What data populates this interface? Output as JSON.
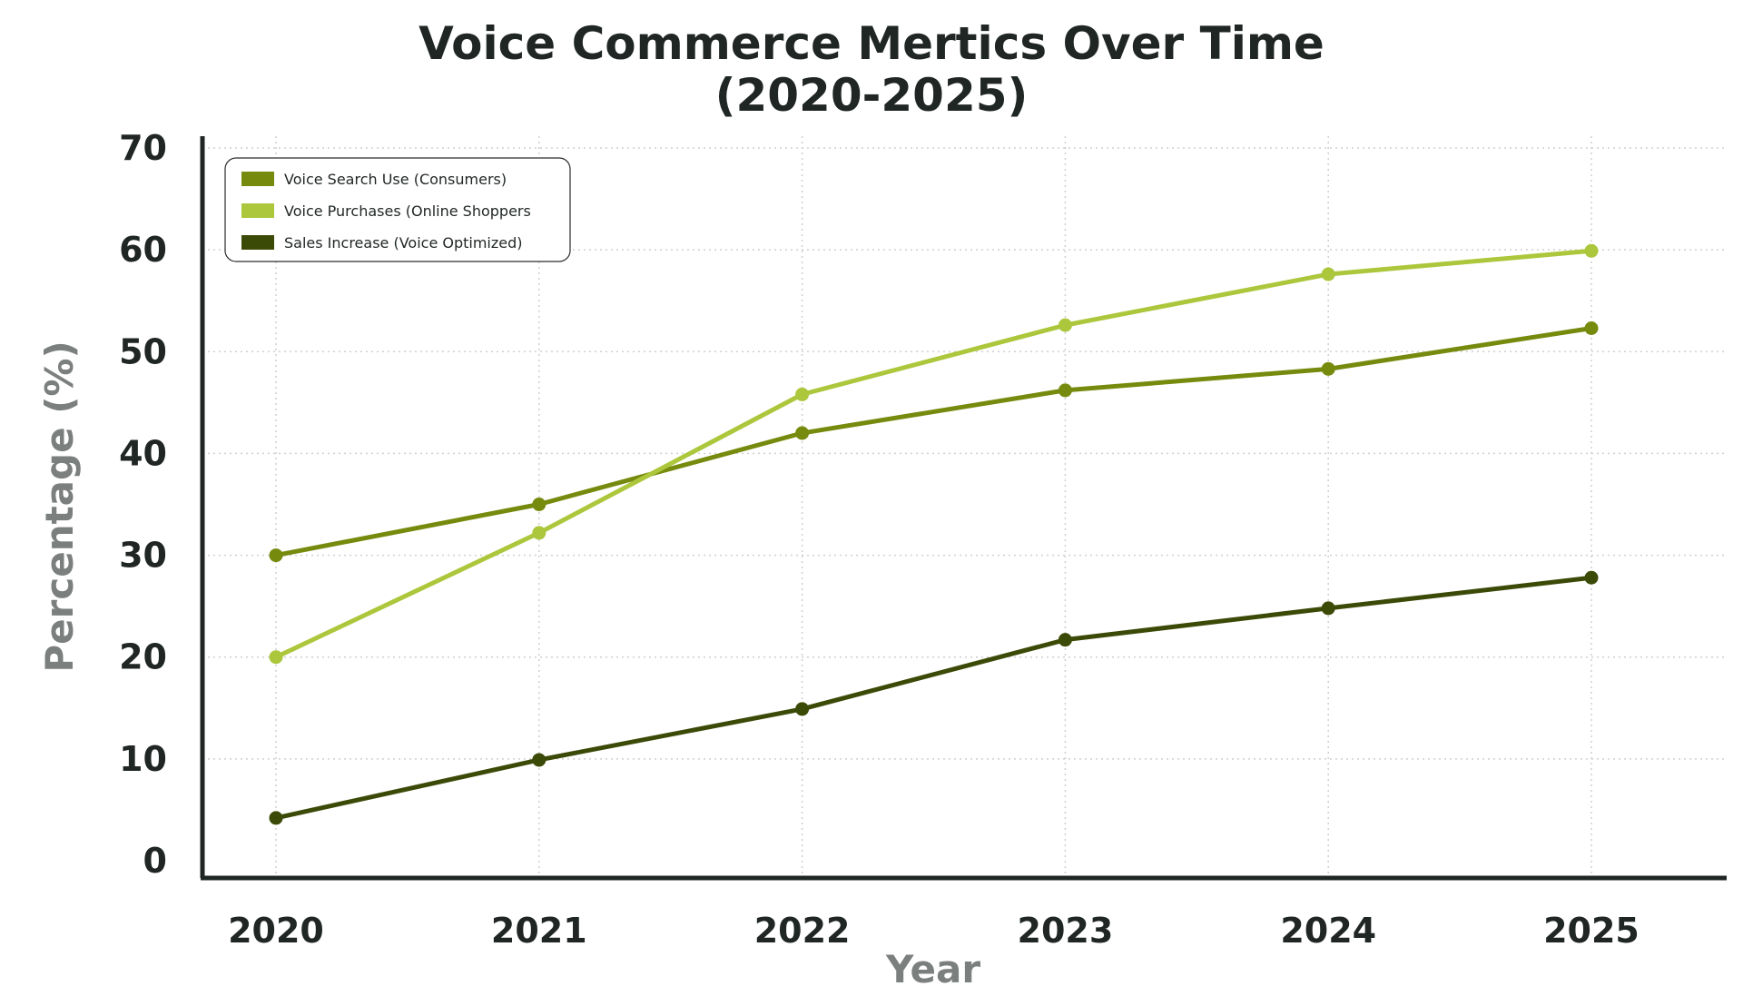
{
  "chart_data": {
    "type": "line",
    "title_lines": [
      "Voice Commerce Mertics Over Time",
      "(2020-2025)"
    ],
    "xlabel": "Year",
    "ylabel": "Percentage (%)",
    "categories": [
      "2020",
      "2021",
      "2022",
      "2023",
      "2024",
      "2025"
    ],
    "y_ticks": [
      "0",
      "10",
      "20",
      "30",
      "40",
      "50",
      "60",
      "70"
    ],
    "ylim": [
      0,
      70
    ],
    "grid": true,
    "legend_position": "top-left",
    "series": [
      {
        "name": "Voice Search Use (Consumers)",
        "color": "#768a0e",
        "values": [
          30,
          35,
          42,
          46.2,
          48.3,
          52.3
        ]
      },
      {
        "name": "Voice Purchases (Online Shoppers",
        "color": "#acc73c",
        "values": [
          20,
          32.2,
          45.8,
          52.6,
          57.6,
          59.9
        ]
      },
      {
        "name": "Sales Increase (Voice Optimized)",
        "color": "#3c4a08",
        "values": [
          4.2,
          9.9,
          14.9,
          21.7,
          24.8,
          27.8
        ]
      }
    ]
  }
}
